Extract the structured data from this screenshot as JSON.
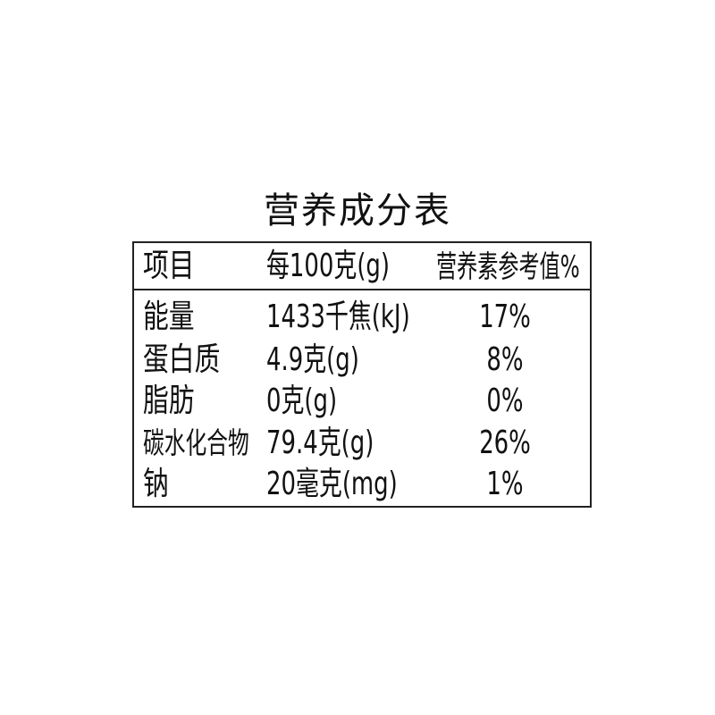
{
  "title": "营养成分表",
  "header": [
    "项目",
    "每100克(g)",
    "营养素参考值%"
  ],
  "rows": [
    [
      "能量",
      "1433千焦(kJ)",
      "17%"
    ],
    [
      "蛋白质",
      "4.9克(g)",
      "8%"
    ],
    [
      "脂肪",
      "0克(g)",
      "0%"
    ],
    [
      "碳水化合物",
      "79.4克(g)",
      "26%"
    ],
    [
      "钠",
      "20毫克(mg)",
      "1%"
    ]
  ]
}
